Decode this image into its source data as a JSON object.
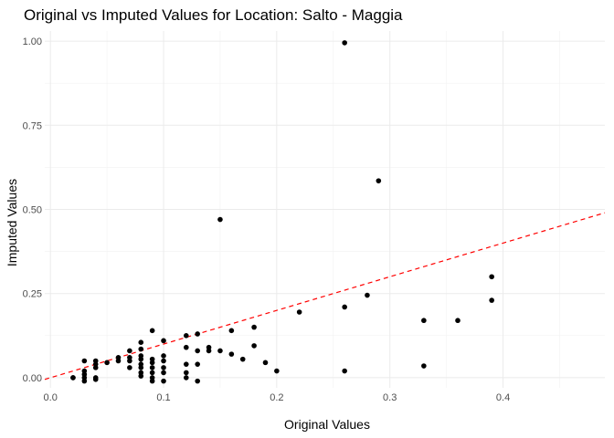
{
  "chart_data": {
    "type": "scatter",
    "title": "Original vs Imputed Values for Location: Salto - Maggia",
    "xlabel": "Original Values",
    "ylabel": "Imputed Values",
    "xlim": [
      -0.005,
      0.49
    ],
    "ylim": [
      -0.03,
      1.03
    ],
    "x_ticks": [
      0.0,
      0.1,
      0.2,
      0.3,
      0.4
    ],
    "x_tick_labels": [
      "0.0",
      "0.1",
      "0.2",
      "0.3",
      "0.4"
    ],
    "y_ticks": [
      0.0,
      0.25,
      0.5,
      0.75,
      1.0
    ],
    "y_tick_labels": [
      "0.00",
      "0.25",
      "0.50",
      "0.75",
      "1.00"
    ],
    "grid": true,
    "legend": "none",
    "reference_line": {
      "slope": 1,
      "intercept": 0,
      "style": "dashed",
      "color": "#ff0000"
    },
    "point_color": "#000000",
    "points": [
      [
        0.02,
        0.0
      ],
      [
        0.02,
        0.0
      ],
      [
        0.03,
        0.05
      ],
      [
        0.03,
        0.02
      ],
      [
        0.03,
        0.01
      ],
      [
        0.03,
        0.0
      ],
      [
        0.03,
        -0.01
      ],
      [
        0.04,
        0.05
      ],
      [
        0.04,
        0.04
      ],
      [
        0.04,
        0.03
      ],
      [
        0.04,
        0.0
      ],
      [
        0.04,
        -0.005
      ],
      [
        0.05,
        0.045
      ],
      [
        0.06,
        0.06
      ],
      [
        0.06,
        0.05
      ],
      [
        0.07,
        0.08
      ],
      [
        0.07,
        0.06
      ],
      [
        0.07,
        0.05
      ],
      [
        0.07,
        0.03
      ],
      [
        0.08,
        0.105
      ],
      [
        0.08,
        0.085
      ],
      [
        0.08,
        0.065
      ],
      [
        0.08,
        0.055
      ],
      [
        0.08,
        0.04
      ],
      [
        0.08,
        0.03
      ],
      [
        0.08,
        0.015
      ],
      [
        0.08,
        0.005
      ],
      [
        0.09,
        0.14
      ],
      [
        0.09,
        0.055
      ],
      [
        0.09,
        0.045
      ],
      [
        0.09,
        0.03
      ],
      [
        0.09,
        0.015
      ],
      [
        0.09,
        0.0
      ],
      [
        0.09,
        -0.01
      ],
      [
        0.1,
        0.11
      ],
      [
        0.1,
        0.065
      ],
      [
        0.1,
        0.05
      ],
      [
        0.1,
        0.03
      ],
      [
        0.1,
        0.015
      ],
      [
        0.1,
        -0.01
      ],
      [
        0.12,
        0.125
      ],
      [
        0.12,
        0.09
      ],
      [
        0.12,
        0.04
      ],
      [
        0.12,
        0.015
      ],
      [
        0.12,
        0.0
      ],
      [
        0.13,
        0.13
      ],
      [
        0.13,
        0.08
      ],
      [
        0.13,
        0.04
      ],
      [
        0.13,
        -0.01
      ],
      [
        0.14,
        0.09
      ],
      [
        0.14,
        0.08
      ],
      [
        0.15,
        0.47
      ],
      [
        0.15,
        0.08
      ],
      [
        0.16,
        0.14
      ],
      [
        0.16,
        0.07
      ],
      [
        0.17,
        0.055
      ],
      [
        0.18,
        0.15
      ],
      [
        0.18,
        0.095
      ],
      [
        0.19,
        0.045
      ],
      [
        0.2,
        0.02
      ],
      [
        0.22,
        0.195
      ],
      [
        0.26,
        0.995
      ],
      [
        0.26,
        0.21
      ],
      [
        0.26,
        0.02
      ],
      [
        0.28,
        0.245
      ],
      [
        0.29,
        0.585
      ],
      [
        0.33,
        0.17
      ],
      [
        0.33,
        0.035
      ],
      [
        0.36,
        0.17
      ],
      [
        0.39,
        0.3
      ],
      [
        0.39,
        0.23
      ]
    ]
  }
}
